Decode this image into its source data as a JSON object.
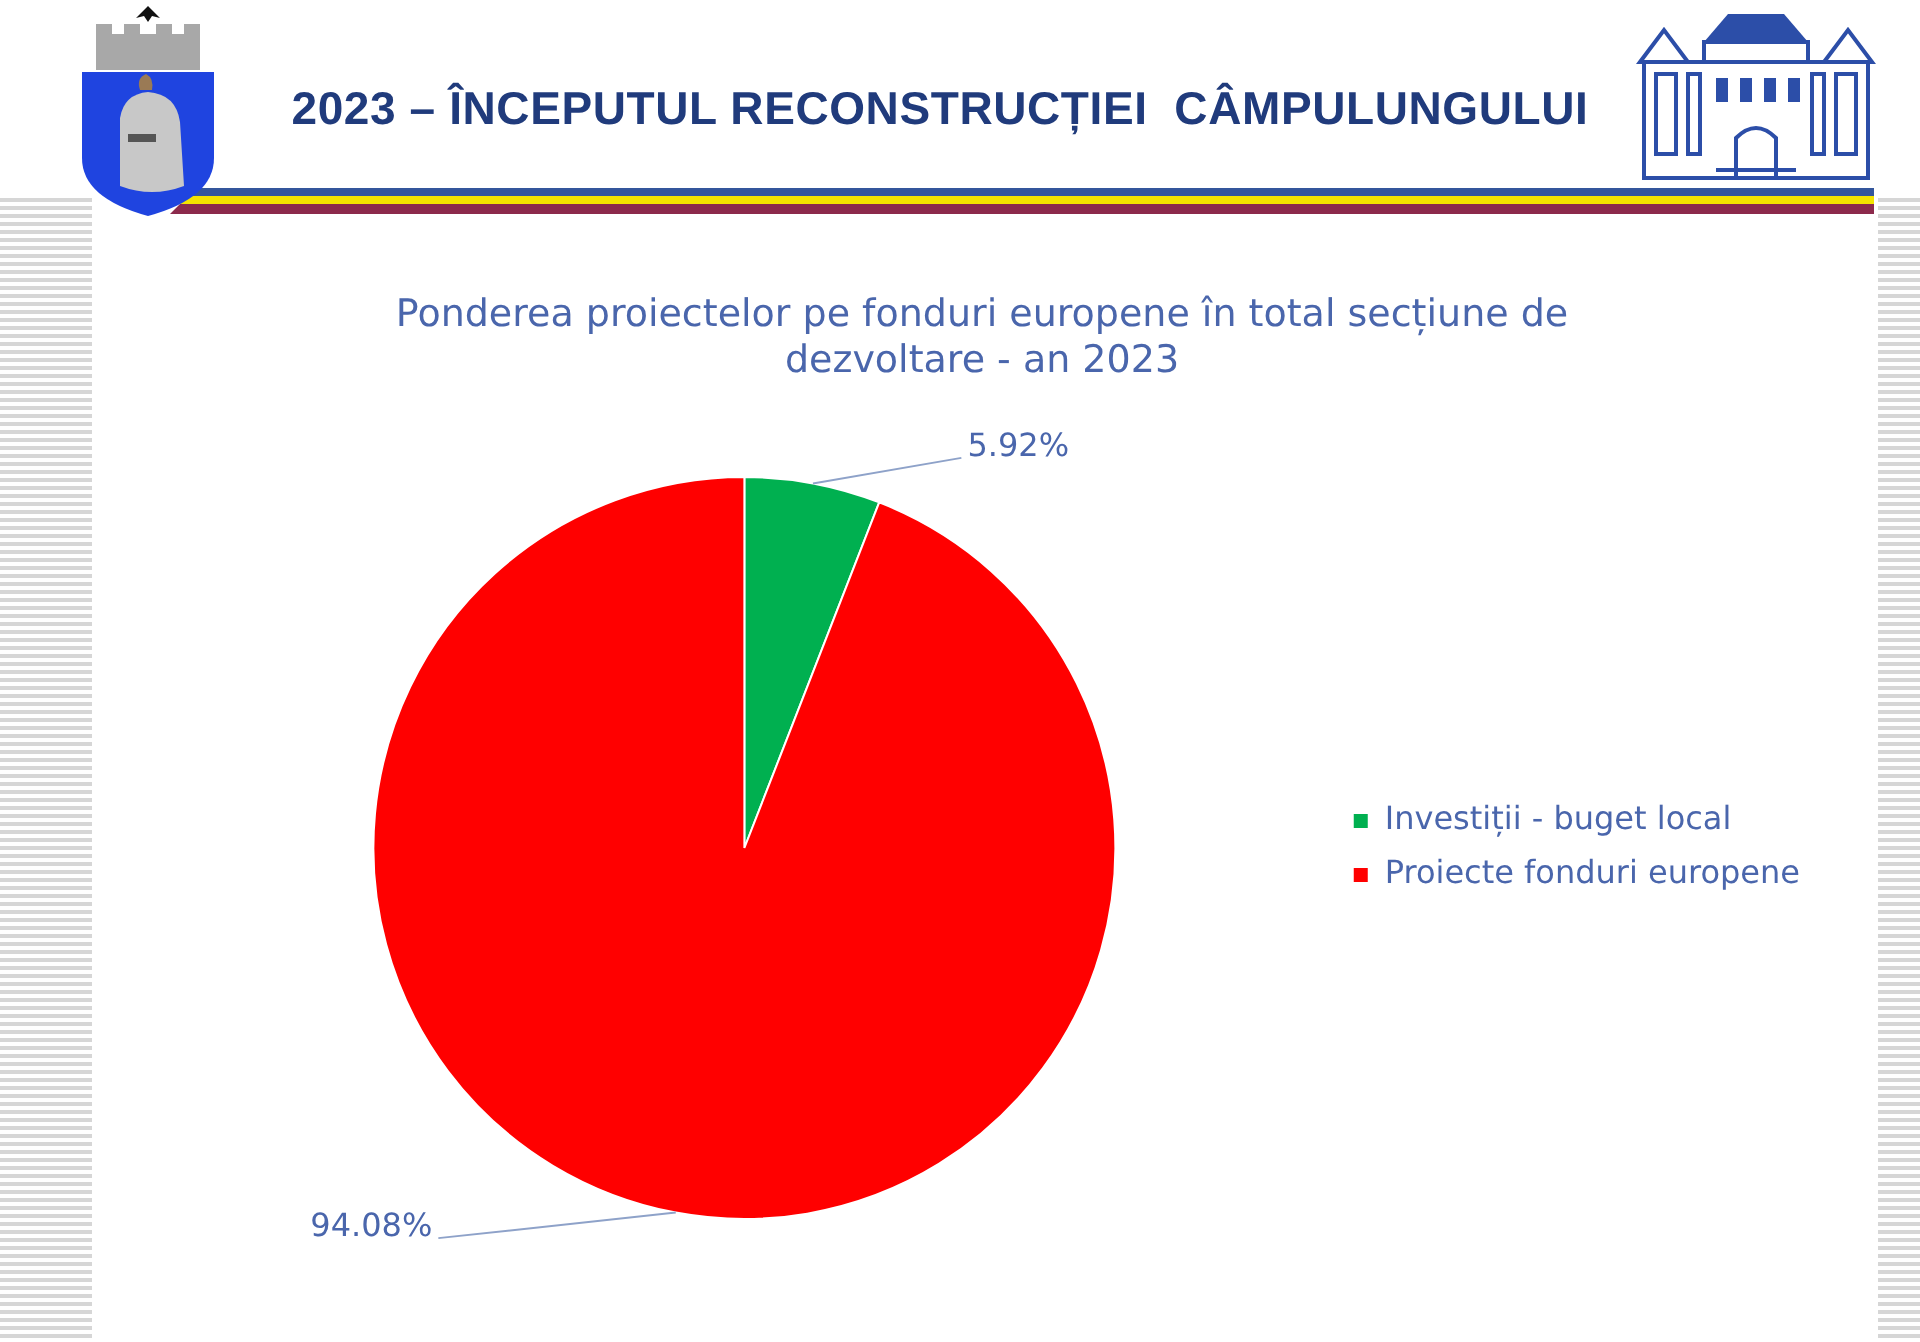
{
  "chart_data": {
    "type": "pie",
    "title": "2023 – ÎNCEPUTUL RECONSTRUCȚIEI  CÂMPULUNGULUI",
    "subtitle": "Ponderea proiectelor pe fonduri europene în total secțiune de dezvoltare - an 2023",
    "categories": [
      "Investiții - buget local",
      "Proiecte fonduri europene"
    ],
    "values": [
      5.92,
      94.08
    ],
    "colors": [
      "#00b050",
      "#ff0000"
    ],
    "value_labels": [
      "5.92%",
      "94.08%"
    ],
    "legend": "right"
  }
}
